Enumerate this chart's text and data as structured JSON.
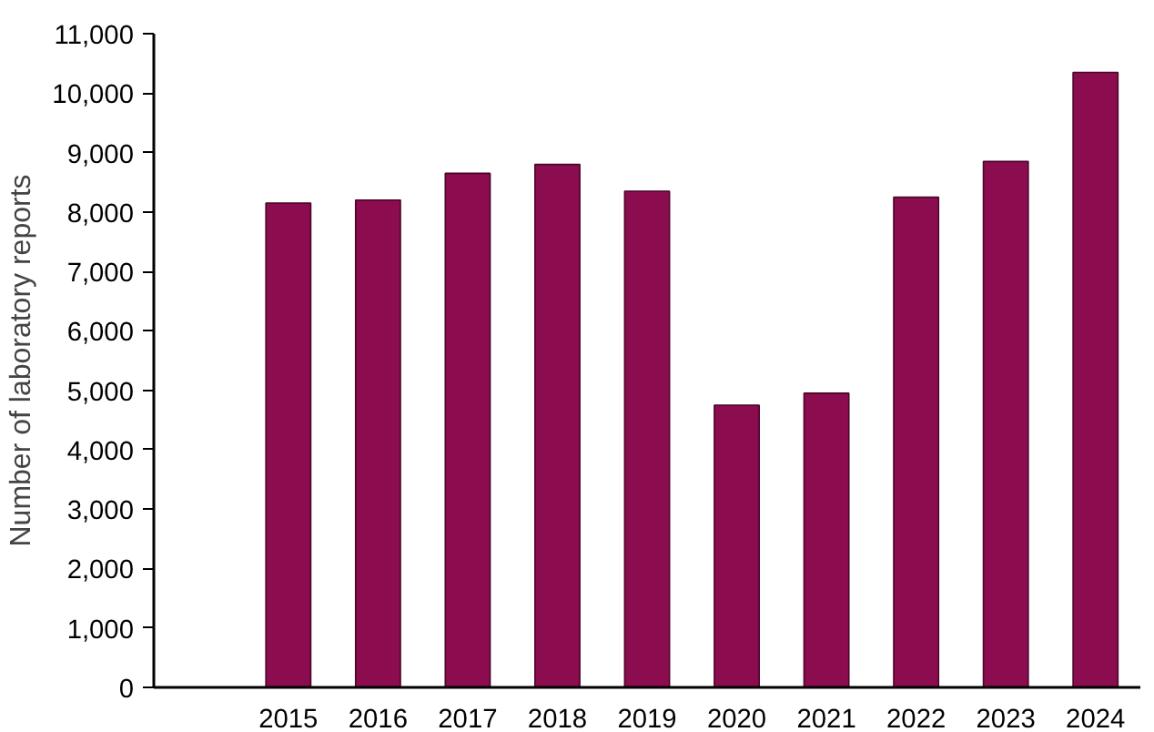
{
  "chart_data": {
    "type": "bar",
    "ylabel": "Number of laboratory reports",
    "categories": [
      "2015",
      "2016",
      "2017",
      "2018",
      "2019",
      "2020",
      "2021",
      "2022",
      "2023",
      "2024"
    ],
    "values": [
      8150,
      8200,
      8650,
      8800,
      8350,
      4750,
      4950,
      8250,
      8850,
      10350
    ],
    "color": "#8b0c4f",
    "ylim": [
      0,
      11000
    ],
    "yticks": [
      0,
      {
        "value": 1000,
        "label": "1,000"
      },
      {
        "value": 2000,
        "label": "2,000"
      },
      {
        "value": 3000,
        "label": "3,000"
      },
      {
        "value": 4000,
        "label": "4,000"
      },
      {
        "value": 5000,
        "label": "5,000"
      },
      {
        "value": 6000,
        "label": "6,000"
      },
      {
        "value": 7000,
        "label": "7,000"
      },
      {
        "value": 8000,
        "label": "8,000"
      },
      {
        "value": 9000,
        "label": "9,000"
      },
      {
        "value": 10000,
        "label": "10,000"
      },
      {
        "value": 11000,
        "label": "11,000"
      }
    ],
    "grid": false
  }
}
